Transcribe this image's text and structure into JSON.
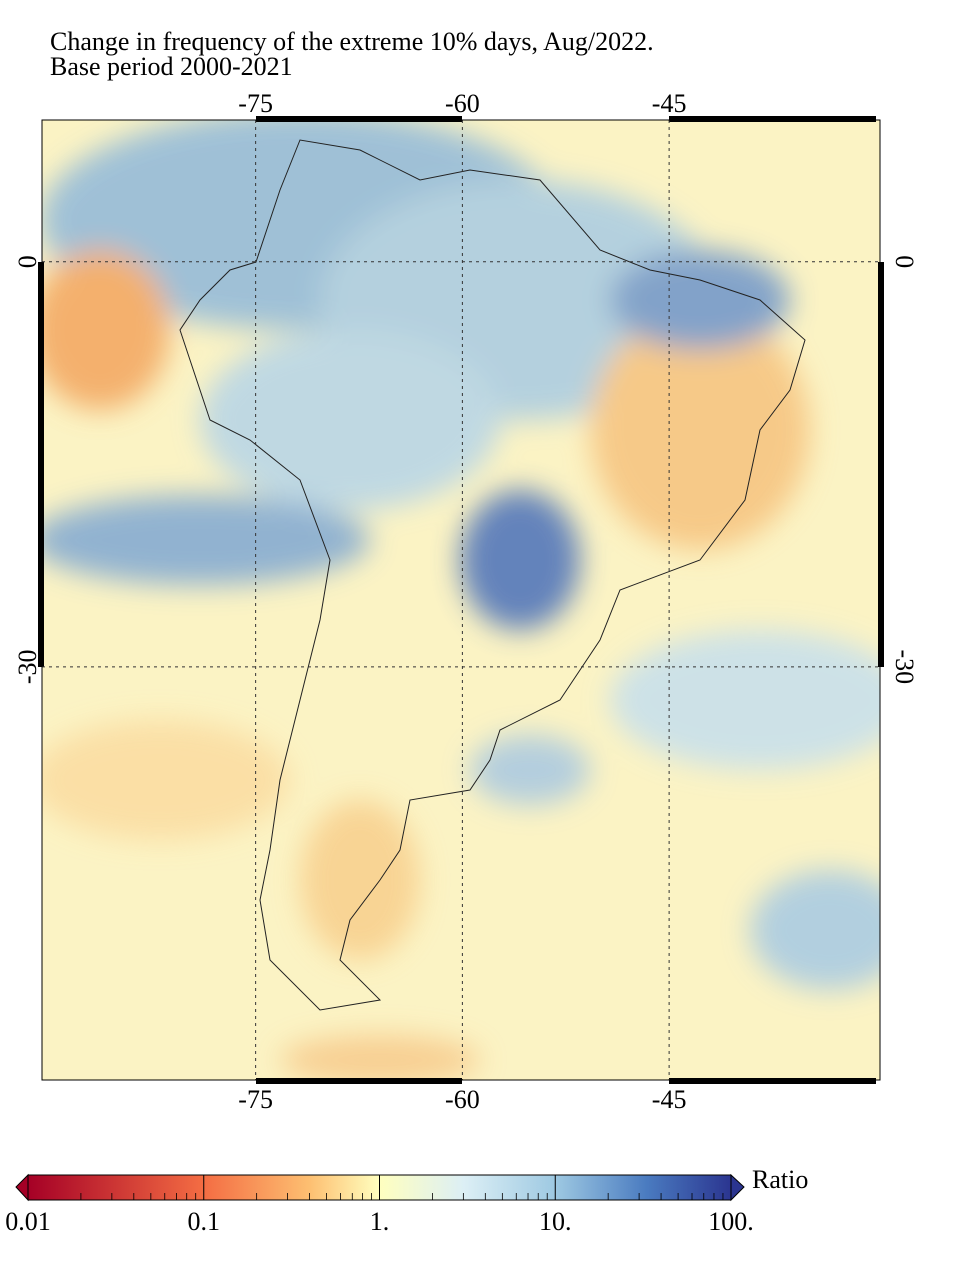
{
  "map": {
    "title": "Change in frequency of the extreme 10% days, Aug/2022.",
    "subtitle": "Base period 2000-2021",
    "xlim": [
      -90.5,
      -29.7
    ],
    "ylim": [
      -60.6,
      10.5
    ],
    "xticks": [
      -75,
      -60,
      -45
    ],
    "yticks": [
      0,
      -30
    ],
    "colorbar": {
      "label": "Ratio",
      "log": true,
      "lim": [
        0.01,
        100
      ],
      "ticks": [
        0.01,
        0.1,
        {
          "value": 1,
          "label": "1."
        },
        {
          "value": 10,
          "label": "10."
        },
        {
          "value": 100,
          "label": "100."
        }
      ]
    }
  }
}
